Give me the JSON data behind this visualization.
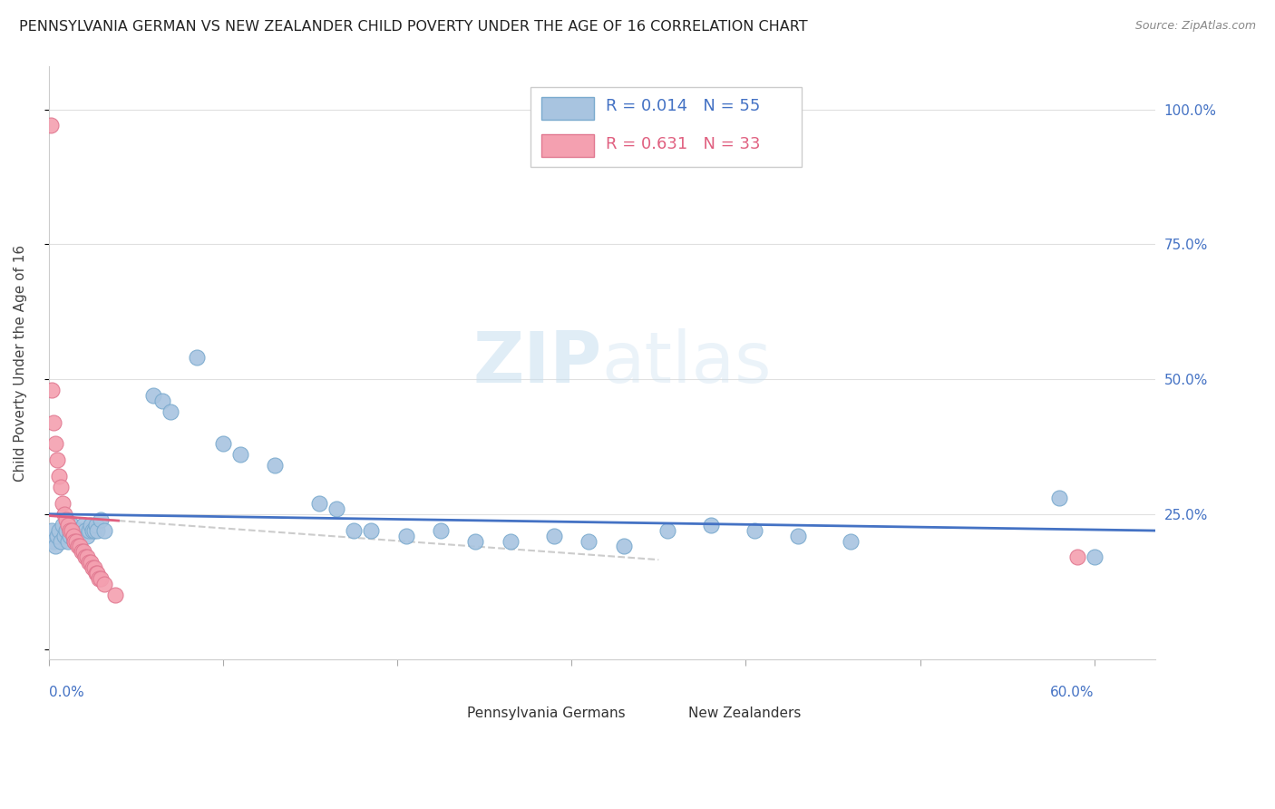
{
  "title": "PENNSYLVANIA GERMAN VS NEW ZEALANDER CHILD POVERTY UNDER THE AGE OF 16 CORRELATION CHART",
  "source": "Source: ZipAtlas.com",
  "ylabel": "Child Poverty Under the Age of 16",
  "series1_label": "Pennsylvania Germans",
  "series1_color": "#a8c4e0",
  "series1_edge": "#7aaace",
  "series1_R": "0.014",
  "series1_N": "55",
  "series2_label": "New Zealanders",
  "series2_color": "#f4a0b0",
  "series2_edge": "#e07890",
  "series2_R": "0.631",
  "series2_N": "33",
  "trend1_color": "#4472c4",
  "trend2_color": "#e06080",
  "trend2_dash_color": "#cccccc",
  "watermark": "ZIPatlas",
  "watermark_color": "#d0e4f5",
  "right_tick_color": "#4472c4",
  "xlabel_color": "#4472c4",
  "grid_color": "#e0e0e0",
  "pennsylvania_x": [
    0.002,
    0.003,
    0.004,
    0.005,
    0.006,
    0.007,
    0.008,
    0.009,
    0.01,
    0.011,
    0.012,
    0.012,
    0.013,
    0.014,
    0.015,
    0.016,
    0.017,
    0.018,
    0.019,
    0.02,
    0.021,
    0.022,
    0.023,
    0.024,
    0.025,
    0.026,
    0.027,
    0.028,
    0.03,
    0.032,
    0.06,
    0.065,
    0.07,
    0.085,
    0.1,
    0.11,
    0.13,
    0.155,
    0.165,
    0.175,
    0.185,
    0.205,
    0.225,
    0.245,
    0.265,
    0.29,
    0.31,
    0.33,
    0.355,
    0.38,
    0.405,
    0.43,
    0.46,
    0.58,
    0.6
  ],
  "pennsylvania_y": [
    0.22,
    0.2,
    0.19,
    0.21,
    0.22,
    0.2,
    0.23,
    0.21,
    0.22,
    0.2,
    0.22,
    0.21,
    0.23,
    0.21,
    0.2,
    0.22,
    0.21,
    0.22,
    0.22,
    0.23,
    0.22,
    0.21,
    0.22,
    0.23,
    0.22,
    0.22,
    0.23,
    0.22,
    0.24,
    0.22,
    0.47,
    0.46,
    0.44,
    0.54,
    0.38,
    0.36,
    0.34,
    0.27,
    0.26,
    0.22,
    0.22,
    0.21,
    0.22,
    0.2,
    0.2,
    0.21,
    0.2,
    0.19,
    0.22,
    0.23,
    0.22,
    0.21,
    0.2,
    0.28,
    0.17
  ],
  "newzealand_x": [
    0.001,
    0.002,
    0.003,
    0.004,
    0.005,
    0.006,
    0.007,
    0.008,
    0.009,
    0.01,
    0.011,
    0.012,
    0.013,
    0.014,
    0.015,
    0.016,
    0.017,
    0.018,
    0.019,
    0.02,
    0.021,
    0.022,
    0.023,
    0.024,
    0.025,
    0.026,
    0.027,
    0.028,
    0.029,
    0.03,
    0.032,
    0.038,
    0.59
  ],
  "newzealand_y": [
    0.97,
    0.48,
    0.42,
    0.38,
    0.35,
    0.32,
    0.3,
    0.27,
    0.25,
    0.24,
    0.23,
    0.22,
    0.22,
    0.21,
    0.2,
    0.2,
    0.19,
    0.19,
    0.18,
    0.18,
    0.17,
    0.17,
    0.16,
    0.16,
    0.15,
    0.15,
    0.14,
    0.14,
    0.13,
    0.13,
    0.12,
    0.1,
    0.17
  ],
  "xlim": [
    0.0,
    0.635
  ],
  "ylim": [
    -0.02,
    1.08
  ],
  "yticks": [
    0.0,
    0.25,
    0.5,
    0.75,
    1.0
  ],
  "ytick_labels_right": [
    "",
    "25.0%",
    "50.0%",
    "75.0%",
    "100.0%"
  ]
}
